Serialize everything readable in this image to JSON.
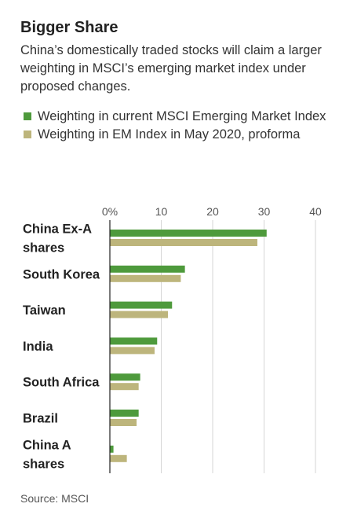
{
  "header": {
    "title": "Bigger Share",
    "subtitle": "China’s domestically traded stocks will claim a larger weighting in MSCI’s emerging market index under proposed changes."
  },
  "legend": [
    {
      "label": "Weighting in current MSCI Emerging Market Index",
      "color": "#4e9a3c"
    },
    {
      "label": "Weighting in EM Index in May 2020, proforma",
      "color": "#bdb57c"
    }
  ],
  "source": "Source: MSCI",
  "chart_data": {
    "type": "bar",
    "orientation": "horizontal",
    "categories": [
      "China Ex-A shares",
      "South Korea",
      "Taiwan",
      "India",
      "South Africa",
      "Brazil",
      "China A shares"
    ],
    "category_lines": [
      [
        "China Ex-A",
        "shares"
      ],
      [
        "South Korea"
      ],
      [
        "Taiwan"
      ],
      [
        "India"
      ],
      [
        "South Africa"
      ],
      [
        "Brazil"
      ],
      [
        "China A",
        "shares"
      ]
    ],
    "series": [
      {
        "name": "Weighting in current MSCI Emerging Market Index",
        "color": "#4e9a3c",
        "values": [
          30.5,
          14.6,
          12.1,
          9.2,
          5.9,
          5.6,
          0.7
        ]
      },
      {
        "name": "Weighting in EM Index in May 2020, proforma",
        "color": "#bdb57c",
        "values": [
          28.7,
          13.8,
          11.3,
          8.7,
          5.6,
          5.2,
          3.3
        ]
      }
    ],
    "xlim": [
      0,
      40
    ],
    "xticks": [
      0,
      10,
      20,
      30,
      40
    ],
    "xtick_labels": [
      "0%",
      "10",
      "20",
      "30",
      "40"
    ],
    "axis_position": "top",
    "grid": true
  }
}
